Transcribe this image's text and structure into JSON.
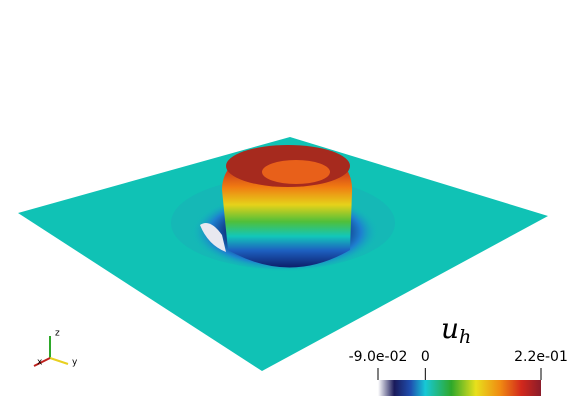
{
  "colorbar": {
    "title": "u",
    "title_subscript": "h",
    "range": [
      -0.09,
      0.22
    ],
    "ticks": [
      {
        "value": -0.09,
        "label": "-9.0e-02"
      },
      0,
      {
        "value": 0.22,
        "label": "2.2e-01"
      }
    ]
  },
  "axes": {
    "x": "x",
    "y": "y",
    "z": "z"
  }
}
